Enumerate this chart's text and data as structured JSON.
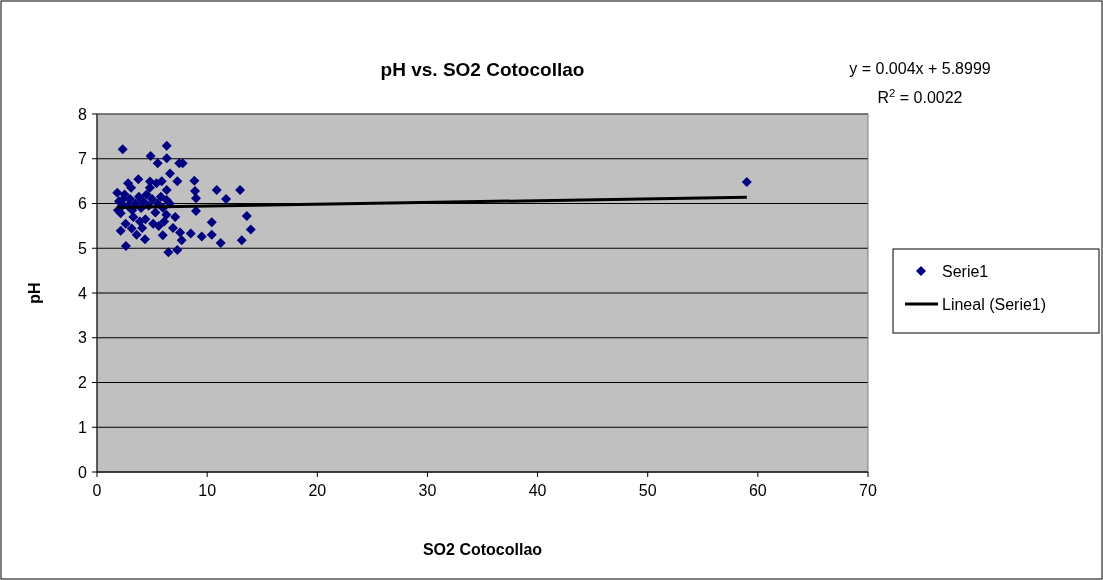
{
  "chart_data": {
    "type": "scatter",
    "title": "pH vs. SO2 Cotocollao",
    "xlabel": "SO2 Cotocollao",
    "ylabel": "pH",
    "xlim": [
      0,
      70
    ],
    "xticks": [
      0,
      10,
      20,
      30,
      40,
      50,
      60,
      70
    ],
    "ylim": [
      0,
      8
    ],
    "yticks": [
      0,
      1,
      2,
      3,
      4,
      5,
      6,
      7,
      8
    ],
    "grid": "y",
    "legend": "right",
    "marker": "diamond",
    "annotations": [
      "y = 0.004x + 5.8999",
      "R$^{2}$ = 0.0022"
    ],
    "series": [
      {
        "name": "Serie1",
        "color": "#000080",
        "x": [
          2.33,
          6.33,
          4.87,
          5.51,
          6.33,
          7.47,
          7.78,
          6.63,
          7.29,
          3.75,
          2.82,
          4.81,
          5.88,
          8.84,
          10.87,
          12.99,
          11.72,
          8.9,
          8.99,
          8.99,
          1.84,
          6.33,
          6.33,
          2.15,
          13.6,
          10.42,
          13.96,
          2.15,
          8.51,
          9.51,
          10.42,
          11.23,
          13.14,
          2.63,
          5.97,
          4.36,
          7.69,
          6.48,
          7.29,
          7.54,
          3.15,
          2.0,
          2.5,
          2.8,
          3.0,
          3.2,
          3.5,
          3.8,
          4.0,
          4.2,
          4.5,
          4.7,
          5.0,
          5.3,
          5.5,
          5.8,
          6.0,
          6.3,
          6.6,
          3.3,
          3.9,
          4.4,
          5.1,
          5.6,
          6.1,
          6.9,
          4.1,
          2.6,
          3.6,
          2.3,
          1.9,
          7.1,
          4.8,
          5.4,
          3.1,
          2.4,
          59
        ],
        "values": [
          7.21,
          7.29,
          7.06,
          6.9,
          7.01,
          6.9,
          6.9,
          6.67,
          6.5,
          6.54,
          6.45,
          6.49,
          6.5,
          6.51,
          6.3,
          6.3,
          6.1,
          6.28,
          6.12,
          5.83,
          6.24,
          6.3,
          6.08,
          5.78,
          5.72,
          5.58,
          5.42,
          5.39,
          5.33,
          5.26,
          5.3,
          5.12,
          5.18,
          5.05,
          5.29,
          5.2,
          5.18,
          4.91,
          4.96,
          5.35,
          5.44,
          6.05,
          6.2,
          5.95,
          6.1,
          5.85,
          6.0,
          6.15,
          5.9,
          6.05,
          6.2,
          5.95,
          6.1,
          5.8,
          6.0,
          6.15,
          5.9,
          5.75,
          6.0,
          5.7,
          5.6,
          5.65,
          5.55,
          5.5,
          5.6,
          5.45,
          5.45,
          5.55,
          5.3,
          5.95,
          5.85,
          5.7,
          6.35,
          6.45,
          6.35,
          6.1,
          6.48
        ]
      },
      {
        "name": "Lineal (Serie1)",
        "type": "line",
        "color": "#000000",
        "line_style": "solid",
        "marker": "none",
        "x": [
          1.8,
          59
        ],
        "values": [
          5.91,
          6.14
        ]
      }
    ]
  }
}
